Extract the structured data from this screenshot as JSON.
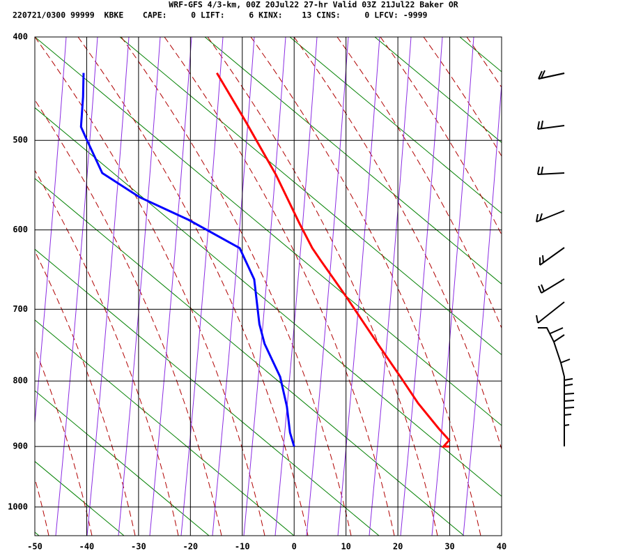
{
  "chart_data": {
    "type": "skewt",
    "title": "WRF-GFS 4/3-km, 00Z 20Jul22 27-hr Valid 03Z 21Jul22 Baker OR",
    "subtitle": "220721/0300 99999  KBKE    CAPE:     0 LIFT:     6 KINX:    13 CINS:     0 LFCV: -9999",
    "xlim": [
      -50,
      40
    ],
    "xticks": [
      -50,
      -40,
      -30,
      -20,
      -10,
      0,
      10,
      20,
      30,
      40
    ],
    "ylim": [
      1050,
      400
    ],
    "yticks": [
      400,
      500,
      600,
      700,
      800,
      900,
      1000
    ],
    "yscale": {
      "type": "power",
      "exponent": 0.286
    },
    "grid": true,
    "series": [
      {
        "color": "#ff0000",
        "x": [
          -14.9,
          -9.3,
          -3.5,
          1.0,
          3.5,
          5.1,
          10.0,
          16.5,
          20.5,
          23.9,
          27.9,
          29.9,
          28.8,
          29.9
        ],
        "y": [
          433,
          481,
          537,
          592,
          622,
          637,
          683,
          751,
          794,
          833,
          872,
          890,
          900,
          900
        ]
      },
      {
        "color": "#0000ff",
        "x": [
          -40.6,
          -40.7,
          -41.1,
          -40.1,
          -37.0,
          -29.8,
          -20.4,
          -10.5,
          -7.7,
          -6.7,
          -5.7,
          -2.7,
          -1.4,
          -0.8,
          0.0
        ],
        "y": [
          433,
          456,
          486,
          498,
          535,
          562,
          588,
          622,
          661,
          720,
          747,
          794,
          838,
          878,
          900
        ]
      }
    ]
  }
}
